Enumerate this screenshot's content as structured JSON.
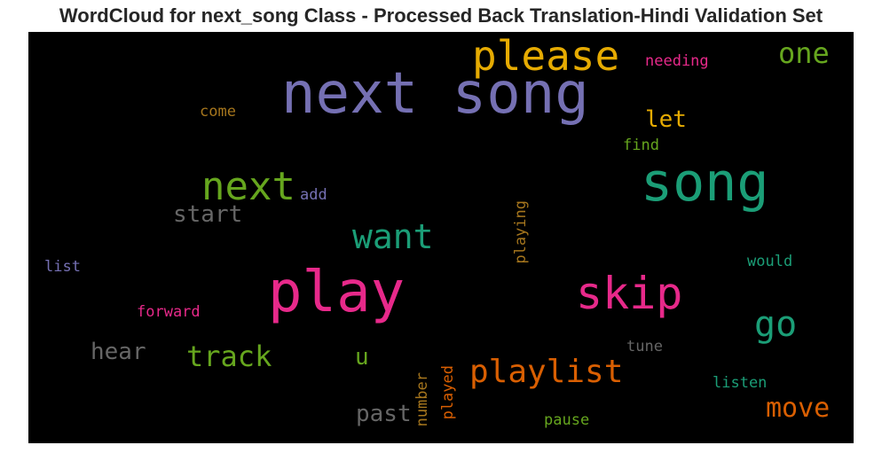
{
  "title": "WordCloud for next_song Class - Processed Back Translation-Hindi Validation Set",
  "words": [
    {
      "text": "next song",
      "color": "#7570b3"
    },
    {
      "text": "please",
      "color": "#e6ab02"
    },
    {
      "text": "one",
      "color": "#66a61e"
    },
    {
      "text": "needing",
      "color": "#e7298a"
    },
    {
      "text": "come",
      "color": "#a6761d"
    },
    {
      "text": "let",
      "color": "#e6ab02"
    },
    {
      "text": "find",
      "color": "#66a61e"
    },
    {
      "text": "song",
      "color": "#1b9e77"
    },
    {
      "text": "next",
      "color": "#66a61e"
    },
    {
      "text": "add",
      "color": "#7570b3"
    },
    {
      "text": "start",
      "color": "#666666"
    },
    {
      "text": "want",
      "color": "#1b9e77"
    },
    {
      "text": "playing",
      "color": "#a6761d"
    },
    {
      "text": "list",
      "color": "#7570b3"
    },
    {
      "text": "play",
      "color": "#e7298a"
    },
    {
      "text": "skip",
      "color": "#e7298a"
    },
    {
      "text": "would",
      "color": "#1b9e77"
    },
    {
      "text": "forward",
      "color": "#e7298a"
    },
    {
      "text": "go",
      "color": "#1b9e77"
    },
    {
      "text": "hear",
      "color": "#666666"
    },
    {
      "text": "track",
      "color": "#66a61e"
    },
    {
      "text": "u",
      "color": "#66a61e"
    },
    {
      "text": "tune",
      "color": "#666666"
    },
    {
      "text": "playlist",
      "color": "#d95f02"
    },
    {
      "text": "listen",
      "color": "#1b9e77"
    },
    {
      "text": "past",
      "color": "#666666"
    },
    {
      "text": "number",
      "color": "#a6761d"
    },
    {
      "text": "played",
      "color": "#d95f02"
    },
    {
      "text": "move",
      "color": "#d95f02"
    },
    {
      "text": "pause",
      "color": "#66a61e"
    }
  ]
}
